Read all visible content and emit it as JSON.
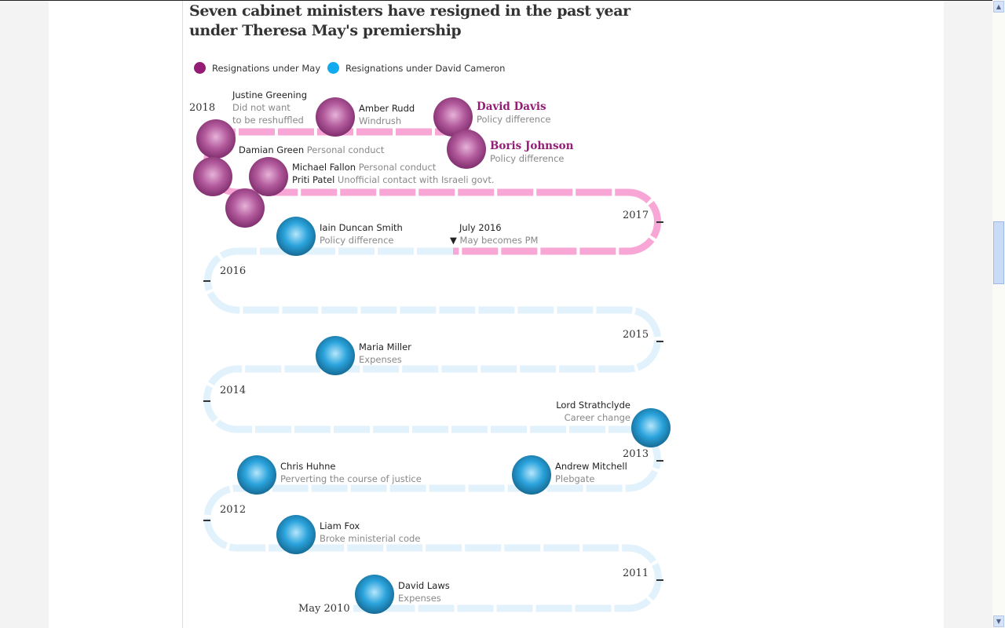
{
  "title": "Seven cabinet ministers have resigned in the past year under Theresa May's premiership",
  "legend": [
    {
      "label": "Resignations under May",
      "color": "#951c75"
    },
    {
      "label": "Resignations under David Cameron",
      "color": "#11aaee"
    }
  ],
  "chart_data": {
    "type": "timeline",
    "title": "Seven cabinet ministers have resigned in the past year under Theresa May's premiership",
    "start_label": "May 2010",
    "years": [
      "2011",
      "2012",
      "2013",
      "2014",
      "2015",
      "2016",
      "2017",
      "2018"
    ],
    "annotation": {
      "date": "July 2016",
      "text": "May becomes PM",
      "marker": "▼"
    },
    "entries": [
      {
        "name": "Justine Greening",
        "reason": "Did not want",
        "reason2": "to be reshuffled",
        "series": "May"
      },
      {
        "name": "Amber Rudd",
        "reason": "Windrush",
        "series": "May"
      },
      {
        "name": "David Davis",
        "reason": "Policy difference",
        "series": "May"
      },
      {
        "name": "Boris Johnson",
        "reason": "Policy difference",
        "series": "May"
      },
      {
        "name": "Damian Green",
        "reason": "Personal conduct",
        "series": "May"
      },
      {
        "name": "Michael Fallon",
        "reason": "Personal conduct",
        "series": "May"
      },
      {
        "name": "Priti Patel",
        "reason": "Unofficial contact with Israeli govt.",
        "series": "May"
      },
      {
        "name": "Iain Duncan Smith",
        "reason": "Policy difference",
        "series": "Cameron"
      },
      {
        "name": "Maria Miller",
        "reason": "Expenses",
        "series": "Cameron"
      },
      {
        "name": "Lord Strathclyde",
        "reason": "Career change",
        "series": "Cameron"
      },
      {
        "name": "Chris Huhne",
        "reason": "Perverting the course of justice",
        "series": "Cameron"
      },
      {
        "name": "Andrew Mitchell",
        "reason": "Plebgate",
        "series": "Cameron"
      },
      {
        "name": "Liam Fox",
        "reason": "Broke ministerial code",
        "series": "Cameron"
      },
      {
        "name": "David Laws",
        "reason": "Expenses",
        "series": "Cameron"
      }
    ]
  },
  "colors": {
    "may_line": "#f7a6d6",
    "cam_line": "#e1f2fc"
  }
}
